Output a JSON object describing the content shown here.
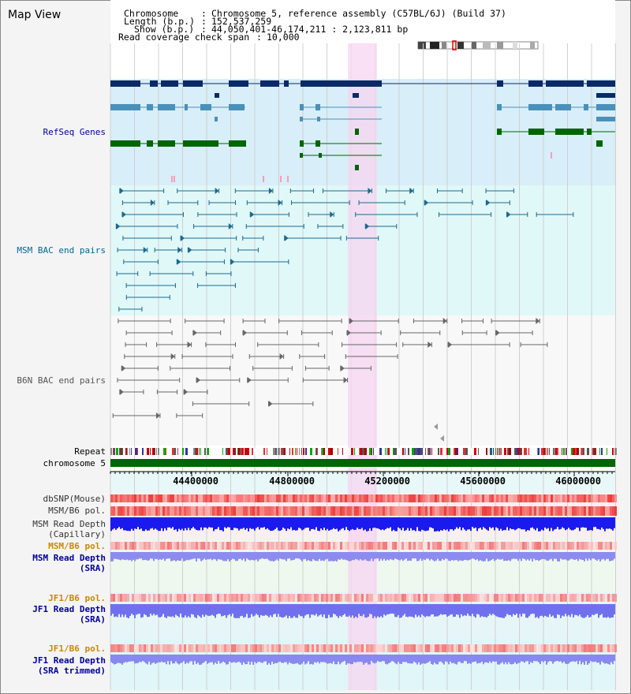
{
  "title": "Map View",
  "header": {
    "chromosome_key": "Chromosome",
    "chromosome_value": "Chromosome 5, reference assembly (C57BL/6J) (Build 37)",
    "length_key": "Length (b.p.)",
    "length_value": "152,537,259",
    "show_key": "Show (b.p.)",
    "show_value": "44,050,401-46,174,211 : 2,123,811 bp",
    "coverage_key": "Read coverage check span",
    "coverage_value": "10,000",
    "separator": ":"
  },
  "tracks": {
    "refseq": {
      "label": "RefSeq Genes",
      "color": "#000099"
    },
    "msm_bac": {
      "label": "MSM BAC end pairs",
      "color": "#006699"
    },
    "b6n_bac": {
      "label": "B6N BAC end pairs",
      "color": "#555555"
    },
    "repeat": {
      "label": "Repeat",
      "color": "#000000"
    },
    "chromosome": {
      "label": "chromosome 5",
      "color": "#000000"
    },
    "dbsnp": {
      "label": "dbSNP(Mouse)",
      "color": "#333333"
    },
    "msm_b6_pol_1": {
      "label": "MSM/B6 pol.",
      "color": "#333333"
    },
    "msm_depth_cap": {
      "label": "MSM Read Depth",
      "sub": "(Capillary)",
      "color": "#333333"
    },
    "msm_b6_pol_2": {
      "label": "MSM/B6 pol.",
      "color": "#cc8800"
    },
    "msm_depth_sra": {
      "label": "MSM Read Depth",
      "sub": "(SRA)",
      "color": "#000099"
    },
    "jf1_b6_pol_1": {
      "label": "JF1/B6 pol.",
      "color": "#cc8800"
    },
    "jf1_depth_sra": {
      "label": "JF1 Read Depth",
      "sub": "(SRA)",
      "color": "#000099"
    },
    "jf1_b6_pol_2": {
      "label": "JF1/B6 pol.",
      "color": "#cc8800"
    },
    "jf1_depth_trim": {
      "label": "JF1 Read Depth",
      "sub": "(SRA trimmed)",
      "color": "#000099"
    }
  },
  "axis": {
    "ticks": [
      "44400000",
      "44800000",
      "45200000",
      "45600000",
      "46000000"
    ]
  },
  "colors": {
    "highlight": "#f7d6f2",
    "refseq_dark": "#0a2a66",
    "refseq_mid": "#4a90b8",
    "refseq_green": "#006600",
    "chromosome_bar": "#006600"
  }
}
